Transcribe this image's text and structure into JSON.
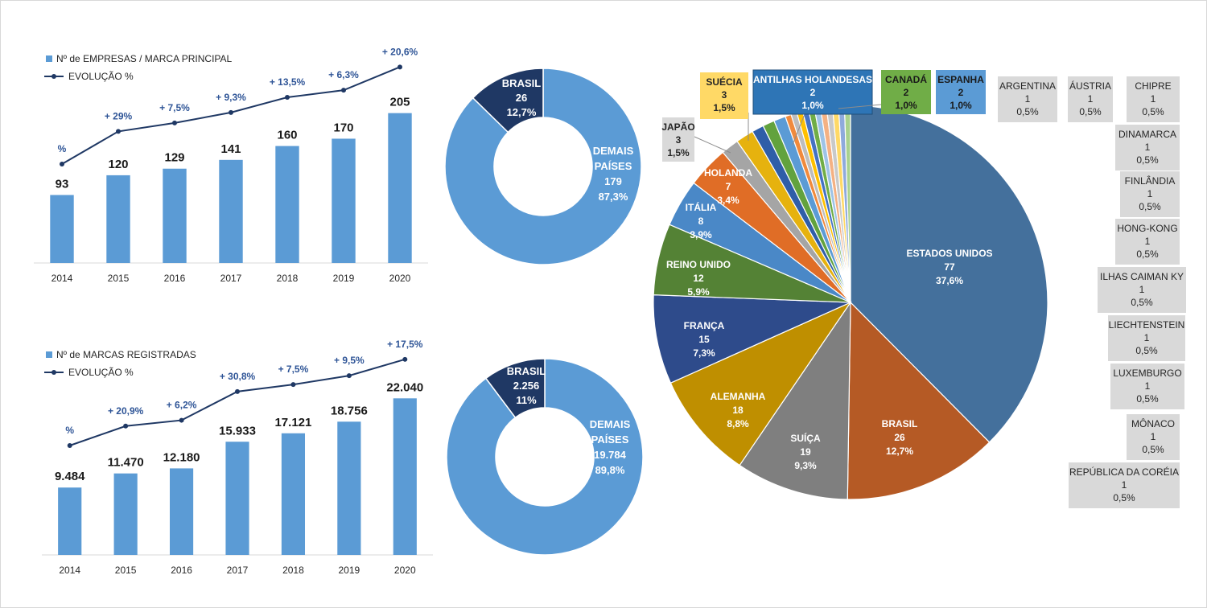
{
  "colors": {
    "bar": "#5b9bd5",
    "line": "#1f3864",
    "line_label": "#2f5597",
    "axis_text": "#262626",
    "donut_main": "#5b9bd5",
    "donut_brasil": "#1f3864",
    "callout_bg": "#d9d9d9"
  },
  "chart_data": [
    {
      "type": "bar",
      "legend": {
        "bar": "Nº de EMPRESAS / MARCA PRINCIPAL",
        "line": "EVOLUÇÃO %"
      },
      "categories": [
        "2014",
        "2015",
        "2016",
        "2017",
        "2018",
        "2019",
        "2020"
      ],
      "values": [
        93,
        120,
        129,
        141,
        160,
        170,
        205
      ],
      "value_labels": [
        "93",
        "120",
        "129",
        "141",
        "160",
        "170",
        "205"
      ],
      "evolution_labels": [
        "%",
        "+ 29%",
        "+ 7,5%",
        "+ 9,3%",
        "+ 13,5%",
        "+ 6,3%",
        "+ 20,6%"
      ],
      "evolution_points": [
        0,
        29,
        36.5,
        45.8,
        59.3,
        65.6,
        86.2
      ],
      "ylim": [
        0,
        220
      ]
    },
    {
      "type": "bar",
      "legend": {
        "bar": "Nº de MARCAS REGISTRADAS",
        "line": "EVOLUÇÃO %"
      },
      "categories": [
        "2014",
        "2015",
        "2016",
        "2017",
        "2018",
        "2019",
        "2020"
      ],
      "values": [
        9484,
        11470,
        12180,
        15933,
        17121,
        18756,
        22040
      ],
      "value_labels": [
        "9.484",
        "11.470",
        "12.180",
        "15.933",
        "17.121",
        "18.756",
        "22.040"
      ],
      "evolution_labels": [
        "%",
        "+ 20,9%",
        "+ 6,2%",
        "+ 30,8%",
        "+ 7,5%",
        "+ 9,5%",
        "+ 17,5%"
      ],
      "evolution_points": [
        0,
        20.9,
        27.1,
        57.9,
        65.4,
        74.9,
        92.4
      ],
      "ylim": [
        0,
        24000
      ]
    },
    {
      "type": "pie",
      "donut": true,
      "slices": [
        {
          "name": "BRASIL",
          "value": 26,
          "percent": "12,7%",
          "value_label": "26"
        },
        {
          "name": "DEMAIS PAÍSES",
          "value": 179,
          "percent": "87,3%",
          "value_label": "179"
        }
      ]
    },
    {
      "type": "pie",
      "donut": true,
      "slices": [
        {
          "name": "BRASIL",
          "value": 2256,
          "percent": "11%",
          "value_label": "2.256"
        },
        {
          "name": "DEMAIS PAÍSES",
          "value": 19784,
          "percent": "89,8%",
          "value_label": "19.784"
        }
      ]
    },
    {
      "type": "pie",
      "slices": [
        {
          "name": "ESTADOS UNIDOS",
          "value": 77,
          "percent": "37,6%",
          "color": "#44709c"
        },
        {
          "name": "BRASIL",
          "value": 26,
          "percent": "12,7%",
          "color": "#b55a25"
        },
        {
          "name": "SUÍÇA",
          "value": 19,
          "percent": "9,3%",
          "color": "#7f7f7f"
        },
        {
          "name": "ALEMANHA",
          "value": 18,
          "percent": "8,8%",
          "color": "#bf8f00"
        },
        {
          "name": "FRANÇA",
          "value": 15,
          "percent": "7,3%",
          "color": "#2e4b8b"
        },
        {
          "name": "REINO UNIDO",
          "value": 12,
          "percent": "5,9%",
          "color": "#548235"
        },
        {
          "name": "ITÁLIA",
          "value": 8,
          "percent": "3,9%",
          "color": "#4a88c7"
        },
        {
          "name": "HOLANDA",
          "value": 7,
          "percent": "3,4%",
          "color": "#e06d26"
        },
        {
          "name": "JAPÃO",
          "value": 3,
          "percent": "1,5%",
          "color": "#a5a5a5"
        },
        {
          "name": "SUÉCIA",
          "value": 3,
          "percent": "1,5%",
          "color": "#e6b20e"
        },
        {
          "name": "ANTILHAS HOLANDESAS",
          "value": 2,
          "percent": "1,0%",
          "color": "#2f5ea8"
        },
        {
          "name": "CANADÁ",
          "value": 2,
          "percent": "1,0%",
          "color": "#62a23e"
        },
        {
          "name": "ESPANHA",
          "value": 2,
          "percent": "1,0%",
          "color": "#5b9bd5"
        },
        {
          "name": "ARGENTINA",
          "value": 1,
          "percent": "0,5%",
          "color": "#f08a3c"
        },
        {
          "name": "ÁUSTRIA",
          "value": 1,
          "percent": "0,5%",
          "color": "#bdbdbd"
        },
        {
          "name": "CHIPRE",
          "value": 1,
          "percent": "0,5%",
          "color": "#ffc000"
        },
        {
          "name": "DINAMARCA",
          "value": 1,
          "percent": "0,5%",
          "color": "#4472c4"
        },
        {
          "name": "FINLÂNDIA",
          "value": 1,
          "percent": "0,5%",
          "color": "#70ad47"
        },
        {
          "name": "HONG-KONG",
          "value": 1,
          "percent": "0,5%",
          "color": "#9dc3e6"
        },
        {
          "name": "ILHAS CAIMAN KY",
          "value": 1,
          "percent": "0,5%",
          "color": "#f4b183"
        },
        {
          "name": "LIECHTENSTEIN",
          "value": 1,
          "percent": "0,5%",
          "color": "#c9c9c9"
        },
        {
          "name": "LUXEMBURGO",
          "value": 1,
          "percent": "0,5%",
          "color": "#ffd966"
        },
        {
          "name": "MÔNACO",
          "value": 1,
          "percent": "0,5%",
          "color": "#8faadc"
        },
        {
          "name": "REPÚBLICA DA CORÉIA",
          "value": 1,
          "percent": "0,5%",
          "color": "#a9d18e"
        }
      ]
    }
  ]
}
